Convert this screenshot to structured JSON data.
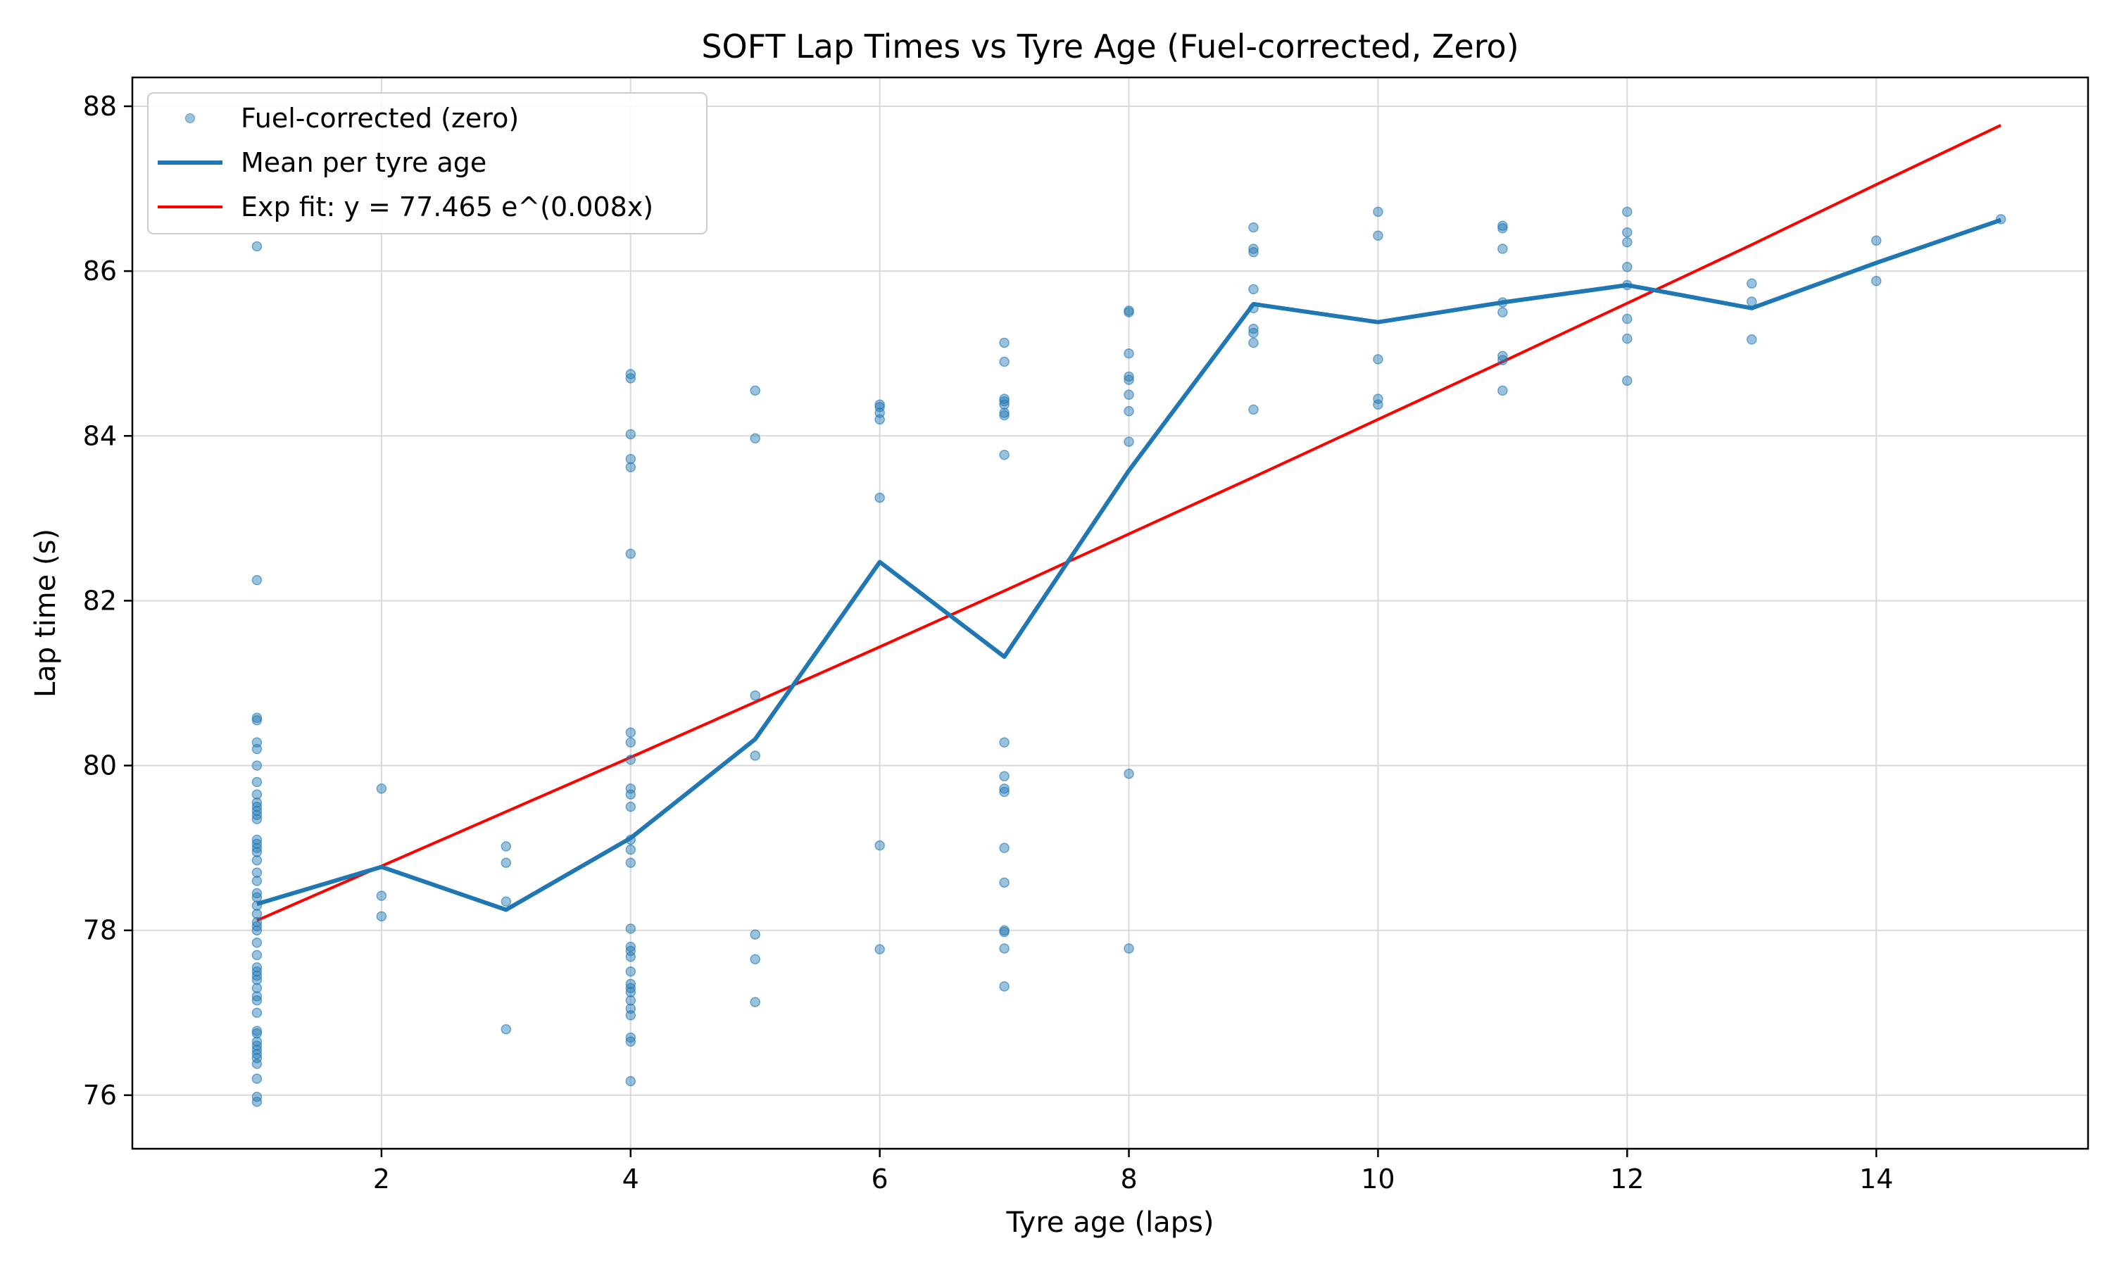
{
  "chart_data": {
    "type": "scatter",
    "title": "SOFT Lap Times vs Tyre Age (Fuel-corrected, Zero)",
    "xlabel": "Tyre age (laps)",
    "ylabel": "Lap time (s)",
    "xlim": [
      0.0,
      15.7
    ],
    "ylim": [
      75.35,
      88.35
    ],
    "xticks": [
      2,
      4,
      6,
      8,
      10,
      12,
      14
    ],
    "yticks": [
      76,
      78,
      80,
      82,
      84,
      86,
      88
    ],
    "grid": true,
    "legend_position": "top-left",
    "colors": {
      "scatter": "#1f77b4",
      "mean": "#1f77b4",
      "fit": "#ff0000"
    },
    "legend": [
      {
        "label": "Fuel-corrected (zero)",
        "kind": "scatter"
      },
      {
        "label": "Mean per tyre age",
        "kind": "mean"
      },
      {
        "label": "Exp fit: y = 77.465 e^(0.008x)",
        "kind": "fit"
      }
    ],
    "series": [
      {
        "name": "Fuel-corrected (zero)",
        "type": "scatter",
        "points": [
          [
            1,
            86.3
          ],
          [
            1,
            82.25
          ],
          [
            1,
            80.58
          ],
          [
            1,
            80.55
          ],
          [
            1,
            80.28
          ],
          [
            1,
            80.2
          ],
          [
            1,
            80.0
          ],
          [
            1,
            79.8
          ],
          [
            1,
            79.65
          ],
          [
            1,
            79.55
          ],
          [
            1,
            79.5
          ],
          [
            1,
            79.45
          ],
          [
            1,
            79.4
          ],
          [
            1,
            79.35
          ],
          [
            1,
            79.1
          ],
          [
            1,
            79.05
          ],
          [
            1,
            79.0
          ],
          [
            1,
            78.95
          ],
          [
            1,
            78.85
          ],
          [
            1,
            78.7
          ],
          [
            1,
            78.6
          ],
          [
            1,
            78.45
          ],
          [
            1,
            78.4
          ],
          [
            1,
            78.3
          ],
          [
            1,
            78.2
          ],
          [
            1,
            78.1
          ],
          [
            1,
            78.05
          ],
          [
            1,
            78.0
          ],
          [
            1,
            77.85
          ],
          [
            1,
            77.7
          ],
          [
            1,
            77.55
          ],
          [
            1,
            77.5
          ],
          [
            1,
            77.45
          ],
          [
            1,
            77.4
          ],
          [
            1,
            77.3
          ],
          [
            1,
            77.2
          ],
          [
            1,
            77.15
          ],
          [
            1,
            77.0
          ],
          [
            1,
            76.78
          ],
          [
            1,
            76.75
          ],
          [
            1,
            76.65
          ],
          [
            1,
            76.6
          ],
          [
            1,
            76.55
          ],
          [
            1,
            76.5
          ],
          [
            1,
            76.45
          ],
          [
            1,
            76.38
          ],
          [
            1,
            76.2
          ],
          [
            1,
            75.98
          ],
          [
            1,
            75.92
          ],
          [
            2,
            79.72
          ],
          [
            2,
            78.42
          ],
          [
            2,
            78.17
          ],
          [
            3,
            79.02
          ],
          [
            3,
            78.82
          ],
          [
            3,
            78.35
          ],
          [
            3,
            76.8
          ],
          [
            4,
            84.75
          ],
          [
            4,
            84.7
          ],
          [
            4,
            84.02
          ],
          [
            4,
            83.72
          ],
          [
            4,
            83.62
          ],
          [
            4,
            82.57
          ],
          [
            4,
            80.4
          ],
          [
            4,
            80.28
          ],
          [
            4,
            80.07
          ],
          [
            4,
            79.72
          ],
          [
            4,
            79.65
          ],
          [
            4,
            79.5
          ],
          [
            4,
            79.1
          ],
          [
            4,
            78.98
          ],
          [
            4,
            78.82
          ],
          [
            4,
            78.02
          ],
          [
            4,
            77.8
          ],
          [
            4,
            77.75
          ],
          [
            4,
            77.68
          ],
          [
            4,
            77.5
          ],
          [
            4,
            77.35
          ],
          [
            4,
            77.3
          ],
          [
            4,
            77.25
          ],
          [
            4,
            77.15
          ],
          [
            4,
            77.05
          ],
          [
            4,
            76.97
          ],
          [
            4,
            76.7
          ],
          [
            4,
            76.65
          ],
          [
            4,
            76.17
          ],
          [
            5,
            84.55
          ],
          [
            5,
            83.97
          ],
          [
            5,
            80.85
          ],
          [
            5,
            80.12
          ],
          [
            5,
            77.95
          ],
          [
            5,
            77.65
          ],
          [
            5,
            77.13
          ],
          [
            6,
            84.38
          ],
          [
            6,
            84.35
          ],
          [
            6,
            84.28
          ],
          [
            6,
            84.2
          ],
          [
            6,
            83.25
          ],
          [
            6,
            79.03
          ],
          [
            6,
            77.77
          ],
          [
            7,
            85.13
          ],
          [
            7,
            84.9
          ],
          [
            7,
            84.45
          ],
          [
            7,
            84.42
          ],
          [
            7,
            84.38
          ],
          [
            7,
            84.28
          ],
          [
            7,
            84.25
          ],
          [
            7,
            83.77
          ],
          [
            7,
            80.28
          ],
          [
            7,
            79.87
          ],
          [
            7,
            79.72
          ],
          [
            7,
            79.68
          ],
          [
            7,
            79.0
          ],
          [
            7,
            78.58
          ],
          [
            7,
            78.0
          ],
          [
            7,
            77.98
          ],
          [
            7,
            77.78
          ],
          [
            7,
            77.32
          ],
          [
            8,
            85.52
          ],
          [
            8,
            85.5
          ],
          [
            8,
            85.0
          ],
          [
            8,
            84.72
          ],
          [
            8,
            84.68
          ],
          [
            8,
            84.5
          ],
          [
            8,
            84.3
          ],
          [
            8,
            83.93
          ],
          [
            8,
            79.9
          ],
          [
            8,
            77.78
          ],
          [
            9,
            86.53
          ],
          [
            9,
            86.27
          ],
          [
            9,
            86.23
          ],
          [
            9,
            85.78
          ],
          [
            9,
            85.55
          ],
          [
            9,
            85.3
          ],
          [
            9,
            85.25
          ],
          [
            9,
            85.13
          ],
          [
            9,
            84.32
          ],
          [
            10,
            86.72
          ],
          [
            10,
            86.43
          ],
          [
            10,
            84.93
          ],
          [
            10,
            84.45
          ],
          [
            10,
            84.38
          ],
          [
            11,
            86.55
          ],
          [
            11,
            86.52
          ],
          [
            11,
            86.27
          ],
          [
            11,
            85.62
          ],
          [
            11,
            85.5
          ],
          [
            11,
            84.97
          ],
          [
            11,
            84.92
          ],
          [
            11,
            84.55
          ],
          [
            12,
            86.72
          ],
          [
            12,
            86.47
          ],
          [
            12,
            86.35
          ],
          [
            12,
            86.05
          ],
          [
            12,
            85.83
          ],
          [
            12,
            85.42
          ],
          [
            12,
            85.18
          ],
          [
            12,
            84.67
          ],
          [
            13,
            85.85
          ],
          [
            13,
            85.63
          ],
          [
            13,
            85.17
          ],
          [
            14,
            86.37
          ],
          [
            14,
            85.88
          ],
          [
            15,
            86.63
          ]
        ]
      },
      {
        "name": "Mean per tyre age",
        "type": "line",
        "x": [
          1,
          2,
          3,
          4,
          5,
          6,
          7,
          8,
          9,
          10,
          11,
          12,
          13,
          14,
          15
        ],
        "y": [
          78.32,
          78.77,
          78.25,
          79.12,
          80.32,
          82.47,
          81.32,
          83.58,
          85.6,
          85.38,
          85.62,
          85.83,
          85.55,
          86.1,
          86.62
        ]
      },
      {
        "name": "Exp fit: y = 77.465 e^(0.008x)",
        "type": "line",
        "x": [
          1,
          2,
          3,
          4,
          5,
          6,
          7,
          8,
          9,
          10,
          11,
          12,
          13,
          14,
          15
        ],
        "y": [
          78.12,
          78.78,
          79.44,
          80.1,
          80.77,
          81.44,
          82.12,
          82.81,
          83.5,
          84.2,
          84.9,
          85.61,
          86.32,
          87.05,
          87.77
        ]
      }
    ]
  }
}
